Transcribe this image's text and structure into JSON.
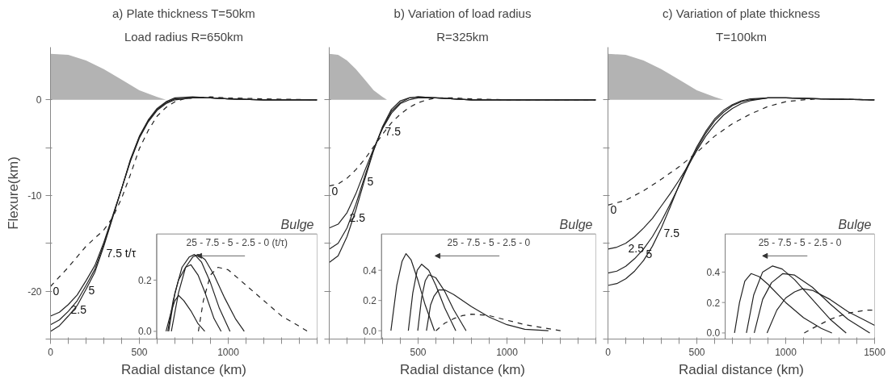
{
  "chart_data": [
    {
      "type": "line",
      "title": "a) Plate thickness T=50km",
      "subtitle": "Load radius R=650km",
      "xlabel": "Radial distance (km)",
      "ylabel": "Flexure(km)",
      "xlim": [
        0,
        1500
      ],
      "xticks": [
        0,
        {
          "value": 100,
          "label": null
        },
        {
          "value": 200,
          "label": null
        },
        {
          "value": 300,
          "label": null
        },
        {
          "value": 400,
          "label": null
        },
        500,
        {
          "value": 600,
          "label": null
        },
        {
          "value": 700,
          "label": null
        },
        {
          "value": 800,
          "label": null
        },
        {
          "value": 900,
          "label": null
        },
        1000,
        {
          "value": 1100,
          "label": null
        },
        {
          "value": 1200,
          "label": null
        },
        {
          "value": 1300,
          "label": null
        },
        {
          "value": 1400,
          "label": null
        },
        {
          "value": 1500,
          "label": null
        }
      ],
      "ylim": [
        -25,
        5.5
      ],
      "yticks": [
        {
          "value": -25,
          "label": null
        },
        -20,
        {
          "value": -15,
          "label": null
        },
        -10,
        {
          "value": -5,
          "label": null
        },
        0
      ],
      "y2lim": [
        -0.03,
        0.38
      ],
      "y2ticks": [
        {
          "value": 0,
          "label": "0.0"
        },
        0.2
      ],
      "series": [
        {
          "type": "area",
          "color": "#b3b3b3",
          "x": [
            0,
            100,
            200,
            300,
            400,
            500,
            600,
            650
          ],
          "values": [
            4.8,
            4.7,
            4.1,
            3.2,
            2.1,
            1.0,
            0.3,
            0
          ]
        },
        {
          "name": "0",
          "color": "#222222",
          "line_style": "dashed",
          "x": [
            0,
            100,
            200,
            300,
            350,
            400,
            450,
            500,
            550,
            600,
            650,
            700,
            750,
            800,
            900,
            1000,
            1200,
            1500
          ],
          "values": [
            -19.5,
            -17.5,
            -15.3,
            -13.6,
            -12.3,
            -10.3,
            -7.8,
            -5.1,
            -3.2,
            -1.7,
            -0.8,
            -0.2,
            0.1,
            0.2,
            0.3,
            0.2,
            0.1,
            0
          ]
        },
        {
          "name": "2.5",
          "color": "#222222",
          "x": [
            0,
            50,
            100,
            150,
            200,
            250,
            300,
            350,
            400,
            450,
            500,
            550,
            600,
            650,
            700,
            800,
            900,
            1000,
            1200,
            1500
          ],
          "values": [
            -22.6,
            -22.2,
            -21.4,
            -20.4,
            -18.9,
            -17.3,
            -14.9,
            -12.1,
            -9.3,
            -6.4,
            -4,
            -2.3,
            -1.1,
            -0.4,
            0,
            0.2,
            0.2,
            0.1,
            0,
            0
          ]
        },
        {
          "name": "5",
          "color": "#222222",
          "x": [
            0,
            50,
            100,
            150,
            200,
            250,
            300,
            350,
            400,
            450,
            500,
            550,
            600,
            650,
            700,
            800,
            900,
            1000,
            1200,
            1500
          ],
          "values": [
            -23.5,
            -23,
            -22.1,
            -21,
            -19.4,
            -17.7,
            -15.1,
            -12.2,
            -9.3,
            -6.3,
            -3.9,
            -2.2,
            -1,
            -0.3,
            0.1,
            0.2,
            0.2,
            0.1,
            0,
            0
          ]
        },
        {
          "name": "7.5 t/τ",
          "color": "#222222",
          "x": [
            0,
            50,
            100,
            150,
            200,
            250,
            300,
            350,
            400,
            450,
            500,
            550,
            600,
            650,
            700,
            800,
            900,
            1000,
            1200,
            1500
          ],
          "values": [
            -24.2,
            -23.6,
            -22.6,
            -21.5,
            -19.8,
            -18,
            -15.3,
            -12.3,
            -9.3,
            -6.2,
            -3.8,
            -2.1,
            -0.9,
            -0.2,
            0.2,
            0.3,
            0.2,
            0.1,
            0,
            0
          ]
        },
        {
          "color": "#222222",
          "axis": "y2",
          "x": [
            650,
            680,
            700,
            721,
            750,
            790,
            830,
            868
          ],
          "values": [
            0,
            0.08,
            0.12,
            0.14,
            0.12,
            0.08,
            0.03,
            0
          ]
        },
        {
          "color": "#222222",
          "axis": "y2",
          "x": [
            660,
            690,
            720,
            760,
            790,
            830,
            870,
            920,
            960
          ],
          "values": [
            0,
            0.12,
            0.2,
            0.25,
            0.26,
            0.22,
            0.15,
            0.05,
            0
          ]
        },
        {
          "color": "#222222",
          "axis": "y2",
          "x": [
            665,
            700,
            740,
            780,
            810,
            850,
            900,
            950,
            1010
          ],
          "values": [
            0,
            0.15,
            0.25,
            0.29,
            0.3,
            0.27,
            0.19,
            0.09,
            0
          ]
        },
        {
          "color": "#222222",
          "axis": "y2",
          "x": [
            680,
            720,
            760,
            800,
            830,
            870,
            920,
            980,
            1040,
            1090
          ],
          "values": [
            0,
            0.15,
            0.25,
            0.29,
            0.3,
            0.28,
            0.22,
            0.13,
            0.05,
            0
          ]
        },
        {
          "color": "#222222",
          "axis": "y2",
          "line_style": "dashed",
          "x": [
            832,
            860,
            900,
            943,
            1000,
            1100,
            1200,
            1300,
            1400,
            1446
          ],
          "values": [
            0,
            0.12,
            0.22,
            0.25,
            0.24,
            0.18,
            0.12,
            0.06,
            0.02,
            0
          ]
        }
      ],
      "annotations": [
        "Bulge",
        "25 - 7.5 - 5 - 2.5 - 0 (t/τ)"
      ]
    },
    {
      "type": "line",
      "title": "b) Variation of load radius",
      "subtitle": "R=325km",
      "xlabel": "Radial distance (km)",
      "tick_labels": "x",
      "xlim": [
        0,
        1500
      ],
      "xticks": [
        {
          "value": 0,
          "label": null
        },
        {
          "value": 100,
          "label": null
        },
        {
          "value": 200,
          "label": null
        },
        {
          "value": 300,
          "label": null
        },
        {
          "value": 400,
          "label": null
        },
        500,
        {
          "value": 600,
          "label": null
        },
        {
          "value": 700,
          "label": null
        },
        {
          "value": 800,
          "label": null
        },
        {
          "value": 900,
          "label": null
        },
        1000,
        {
          "value": 1100,
          "label": null
        },
        {
          "value": 1200,
          "label": null
        },
        {
          "value": 1300,
          "label": null
        },
        {
          "value": 1400,
          "label": null
        },
        {
          "value": 1500,
          "label": null
        }
      ],
      "ylim": [
        -25,
        5.5
      ],
      "yticks": [
        {
          "value": -25,
          "label": null
        },
        {
          "value": -20,
          "label": null
        },
        {
          "value": -15,
          "label": null
        },
        {
          "value": -10,
          "label": null
        },
        {
          "value": -5,
          "label": null
        },
        {
          "value": 0,
          "label": null
        }
      ],
      "y2lim": [
        -0.055,
        0.64
      ],
      "y2ticks": [
        {
          "value": 0,
          "label": "0.0"
        },
        {
          "value": 0.2,
          "label": "0.2"
        },
        {
          "value": 0.4,
          "label": "0.4"
        }
      ],
      "series": [
        {
          "type": "area",
          "color": "#b3b3b3",
          "x": [
            0,
            50,
            100,
            150,
            200,
            250,
            300,
            325
          ],
          "values": [
            4.8,
            4.7,
            4.1,
            3.2,
            2.1,
            1.0,
            0.3,
            0
          ]
        },
        {
          "name": "0",
          "color": "#222222",
          "line_style": "dashed",
          "x": [
            0,
            50,
            100,
            150,
            200,
            250,
            300,
            350,
            400,
            450,
            500,
            550,
            600,
            700,
            800,
            1000,
            1500
          ],
          "values": [
            -9,
            -8.8,
            -8.2,
            -7.3,
            -6.2,
            -4.9,
            -3.6,
            -2.4,
            -1.5,
            -0.8,
            -0.3,
            0,
            0.2,
            0.2,
            0.1,
            0,
            0
          ]
        },
        {
          "name": "2.5",
          "color": "#222222",
          "x": [
            0,
            50,
            100,
            150,
            200,
            250,
            300,
            350,
            400,
            450,
            500,
            600,
            700,
            800,
            1000,
            1500
          ],
          "values": [
            -13.4,
            -13,
            -11.8,
            -9.8,
            -7.4,
            -5.1,
            -3,
            -1.4,
            -0.4,
            0,
            0.2,
            0.2,
            0.1,
            0,
            0,
            0
          ]
        },
        {
          "name": "5",
          "color": "#222222",
          "x": [
            0,
            50,
            100,
            150,
            200,
            250,
            300,
            350,
            400,
            450,
            500,
            600,
            700,
            800,
            1000,
            1500
          ],
          "values": [
            -15.6,
            -15,
            -13.4,
            -10.9,
            -8,
            -5.2,
            -2.9,
            -1.2,
            -0.3,
            0.2,
            0.3,
            0.2,
            0.1,
            0,
            0,
            0
          ]
        },
        {
          "name": "7.5",
          "color": "#222222",
          "x": [
            0,
            50,
            100,
            150,
            200,
            250,
            300,
            350,
            400,
            450,
            500,
            600,
            700,
            800,
            1000,
            1500
          ],
          "values": [
            -17,
            -16.3,
            -14.3,
            -11.5,
            -8.3,
            -5.3,
            -2.8,
            -1.0,
            -0.1,
            0.2,
            0.3,
            0.2,
            0.1,
            0,
            0,
            0
          ]
        },
        {
          "color": "#222222",
          "axis": "y2",
          "x": [
            347,
            380,
            410,
            432,
            460,
            500,
            540,
            592
          ],
          "values": [
            0,
            0.3,
            0.46,
            0.51,
            0.47,
            0.33,
            0.17,
            0
          ]
        },
        {
          "color": "#222222",
          "axis": "y2",
          "x": [
            445,
            470,
            495,
            520,
            560,
            600,
            650,
            712
          ],
          "values": [
            0,
            0.25,
            0.4,
            0.44,
            0.4,
            0.3,
            0.15,
            0
          ]
        },
        {
          "color": "#222222",
          "axis": "y2",
          "x": [
            498,
            520,
            540,
            560,
            600,
            650,
            700,
            770
          ],
          "values": [
            0,
            0.22,
            0.33,
            0.37,
            0.35,
            0.26,
            0.14,
            0
          ]
        },
        {
          "color": "#222222",
          "axis": "y2",
          "x": [
            547,
            570,
            590,
            615,
            650,
            700,
            800,
            900,
            1000,
            1100,
            1233
          ],
          "values": [
            0,
            0.17,
            0.23,
            0.27,
            0.27,
            0.24,
            0.16,
            0.09,
            0.04,
            0.01,
            0
          ]
        },
        {
          "color": "#222222",
          "axis": "y2",
          "line_style": "dashed",
          "x": [
            600,
            650,
            700,
            750,
            800,
            900,
            1000,
            1100,
            1200,
            1305
          ],
          "values": [
            0,
            0.05,
            0.08,
            0.1,
            0.11,
            0.1,
            0.07,
            0.04,
            0.02,
            0
          ]
        }
      ],
      "annotations": [
        "Bulge",
        "25 - 7.5 - 5 - 2.5 - 0"
      ]
    },
    {
      "type": "line",
      "title": "c) Variation of plate thickness",
      "subtitle": "T=100km",
      "xlabel": "Radial distance (km)",
      "tick_labels": "x",
      "xlim": [
        0,
        1500
      ],
      "xticks": [
        0,
        {
          "value": 100,
          "label": null
        },
        {
          "value": 200,
          "label": null
        },
        {
          "value": 300,
          "label": null
        },
        {
          "value": 400,
          "label": null
        },
        500,
        {
          "value": 600,
          "label": null
        },
        {
          "value": 700,
          "label": null
        },
        {
          "value": 800,
          "label": null
        },
        {
          "value": 900,
          "label": null
        },
        1000,
        {
          "value": 1100,
          "label": null
        },
        {
          "value": 1200,
          "label": null
        },
        {
          "value": 1300,
          "label": null
        },
        {
          "value": 1400,
          "label": null
        },
        1500
      ],
      "ylim": [
        -25,
        5.5
      ],
      "yticks": [
        {
          "value": -25,
          "label": null
        },
        {
          "value": -20,
          "label": null
        },
        {
          "value": -15,
          "label": null
        },
        {
          "value": -10,
          "label": null
        },
        {
          "value": -5,
          "label": null
        },
        {
          "value": 0,
          "label": null
        }
      ],
      "y2lim": [
        -0.04,
        0.65
      ],
      "y2ticks": [
        {
          "value": 0,
          "label": "0.0"
        },
        {
          "value": 0.2,
          "label": "0.2"
        },
        {
          "value": 0.4,
          "label": "0.4"
        }
      ],
      "series": [
        {
          "type": "area",
          "color": "#b3b3b3",
          "x": [
            0,
            100,
            200,
            300,
            400,
            500,
            600,
            650
          ],
          "values": [
            4.8,
            4.7,
            4.1,
            3.2,
            2.1,
            1.0,
            0.3,
            0
          ]
        },
        {
          "name": "0",
          "color": "#222222",
          "line_style": "dashed",
          "x": [
            0,
            100,
            200,
            300,
            400,
            500,
            600,
            700,
            800,
            900,
            1000,
            1100,
            1200,
            1500
          ],
          "values": [
            -11,
            -10.5,
            -9.5,
            -8.3,
            -7,
            -5.5,
            -3.8,
            -2.5,
            -1.5,
            -0.7,
            -0.2,
            0,
            0.1,
            0
          ]
        },
        {
          "name": "2.5",
          "color": "#222222",
          "x": [
            0,
            50,
            100,
            150,
            200,
            250,
            300,
            350,
            400,
            450,
            500,
            550,
            600,
            650,
            700,
            750,
            800,
            900,
            1000,
            1200,
            1500
          ],
          "values": [
            -15.6,
            -15.4,
            -15,
            -14.3,
            -13.4,
            -12.4,
            -11.1,
            -9.8,
            -8.4,
            -6.9,
            -5.3,
            -3.8,
            -2.6,
            -1.6,
            -0.9,
            -0.4,
            -0.1,
            0.2,
            0.2,
            0.1,
            0
          ]
        },
        {
          "name": "5",
          "color": "#222222",
          "x": [
            0,
            50,
            100,
            150,
            200,
            250,
            300,
            350,
            400,
            450,
            500,
            550,
            600,
            650,
            700,
            750,
            800,
            900,
            1000,
            1200,
            1500
          ],
          "values": [
            -18.1,
            -17.9,
            -17.4,
            -16.6,
            -15.6,
            -14.3,
            -12.7,
            -10.9,
            -9,
            -7,
            -5.1,
            -3.5,
            -2.2,
            -1.3,
            -0.6,
            -0.2,
            0,
            0.2,
            0.2,
            0.1,
            0
          ]
        },
        {
          "name": "7.5",
          "color": "#222222",
          "x": [
            0,
            50,
            100,
            150,
            200,
            250,
            300,
            350,
            400,
            450,
            500,
            550,
            600,
            650,
            700,
            750,
            800,
            900,
            1000,
            1200,
            1500
          ],
          "values": [
            -19.4,
            -19.2,
            -18.7,
            -17.9,
            -16.8,
            -15.3,
            -13.4,
            -11.2,
            -8.9,
            -6.8,
            -4.9,
            -3.3,
            -2,
            -1.1,
            -0.5,
            -0.1,
            0.1,
            0.2,
            0.2,
            0.1,
            0
          ]
        },
        {
          "color": "#222222",
          "axis": "y2",
          "x": [
            712,
            740,
            770,
            805,
            850,
            900,
            1000,
            1100,
            1200,
            1260
          ],
          "values": [
            0,
            0.2,
            0.34,
            0.39,
            0.37,
            0.32,
            0.2,
            0.1,
            0.03,
            0
          ]
        },
        {
          "color": "#222222",
          "axis": "y2",
          "x": [
            779,
            820,
            870,
            926,
            980,
            1050,
            1150,
            1250,
            1340
          ],
          "values": [
            0,
            0.25,
            0.4,
            0.44,
            0.42,
            0.35,
            0.22,
            0.09,
            0
          ]
        },
        {
          "color": "#222222",
          "axis": "y2",
          "x": [
            823,
            870,
            920,
            984,
            1050,
            1150,
            1250,
            1350,
            1473
          ],
          "values": [
            0,
            0.22,
            0.33,
            0.39,
            0.38,
            0.3,
            0.19,
            0.09,
            0
          ]
        },
        {
          "color": "#222222",
          "axis": "y2",
          "x": [
            895,
            950,
            1000,
            1050,
            1094,
            1150,
            1250,
            1350,
            1450,
            1500
          ],
          "values": [
            0,
            0.15,
            0.23,
            0.27,
            0.29,
            0.28,
            0.22,
            0.14,
            0.08,
            0.05
          ]
        },
        {
          "color": "#222222",
          "axis": "y2",
          "line_style": "dashed",
          "x": [
            1104,
            1150,
            1200,
            1250,
            1300,
            1350,
            1402,
            1450,
            1500
          ],
          "values": [
            0,
            0.03,
            0.06,
            0.09,
            0.11,
            0.13,
            0.14,
            0.15,
            0.15
          ]
        }
      ],
      "annotations": [
        "Bulge",
        "25 - 7.5 - 5 - 2.5 - 0"
      ]
    }
  ]
}
